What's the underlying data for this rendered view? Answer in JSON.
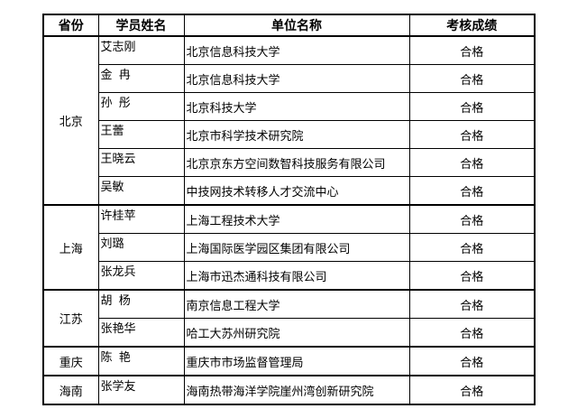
{
  "colors": {
    "border": "#000000",
    "text": "#000000",
    "background": "#ffffff"
  },
  "table": {
    "headers": [
      "省份",
      "学员姓名",
      "单位名称",
      "考核成绩"
    ],
    "groups": [
      {
        "province": "北京",
        "members": [
          {
            "name": "艾志刚",
            "org": "北京信息科技大学",
            "result": "合格"
          },
          {
            "name": "金  冉",
            "org": "北京信息科技大学",
            "result": "合格"
          },
          {
            "name": "孙  彤",
            "org": "北京科技大学",
            "result": "合格"
          },
          {
            "name": "王蕾",
            "org": "北京市科学技术研究院",
            "result": "合格"
          },
          {
            "name": "王晓云",
            "org": "北京京东方空间数智科技服务有限公司",
            "result": "合格"
          },
          {
            "name": "吴敏",
            "org": "中技网技术转移人才交流中心",
            "result": "合格"
          }
        ]
      },
      {
        "province": "上海",
        "members": [
          {
            "name": "许桂苹",
            "org": "上海工程技术大学",
            "result": "合格"
          },
          {
            "name": "刘璐",
            "org": "上海国际医学园区集团有限公司",
            "result": "合格"
          },
          {
            "name": "张龙兵",
            "org": "上海市迅杰通科技有限公司",
            "result": "合格"
          }
        ]
      },
      {
        "province": "江苏",
        "members": [
          {
            "name": "胡  杨",
            "org": "南京信息工程大学",
            "result": "合格"
          },
          {
            "name": "张艳华",
            "org": "哈工大苏州研究院",
            "result": "合格"
          }
        ]
      },
      {
        "province": "重庆",
        "members": [
          {
            "name": "陈  艳",
            "org": "重庆市市场监督管理局",
            "result": "合格"
          }
        ]
      },
      {
        "province": "海南",
        "members": [
          {
            "name": "张学友",
            "org": "海南热带海洋学院崖州湾创新研究院",
            "result": "合格"
          }
        ]
      }
    ]
  }
}
